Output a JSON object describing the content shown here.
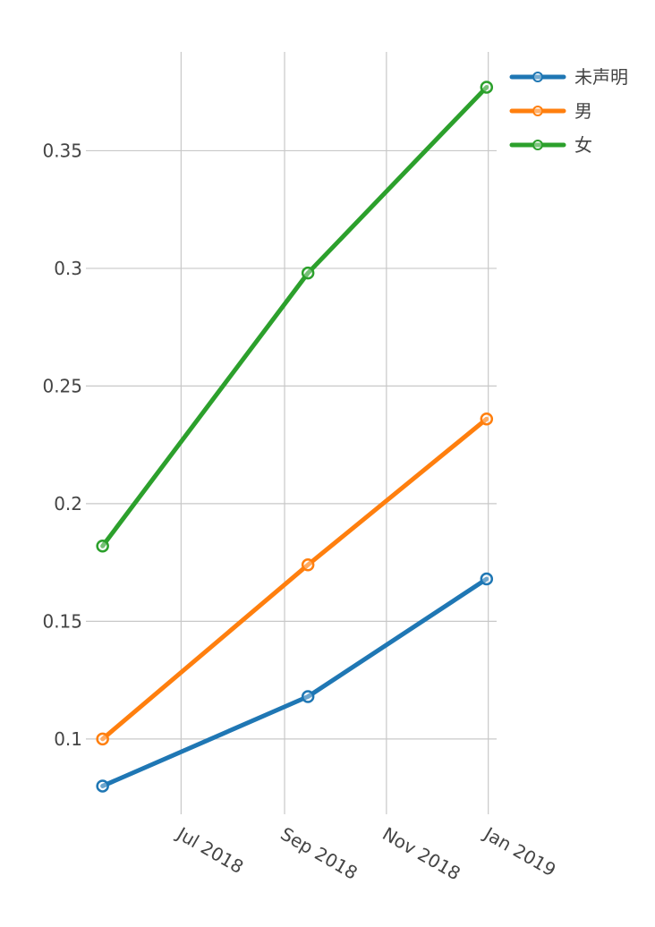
{
  "chart_data": {
    "type": "line",
    "x": [
      "2018-05-15",
      "2018-09-15",
      "2018-12-31"
    ],
    "series": [
      {
        "name": "未声明",
        "values": [
          0.08,
          0.118,
          0.168
        ],
        "color": "#1f77b4"
      },
      {
        "name": "男",
        "values": [
          0.1,
          0.174,
          0.236
        ],
        "color": "#ff7f0e"
      },
      {
        "name": "女",
        "values": [
          0.182,
          0.298,
          0.377
        ],
        "color": "#2ca02c"
      }
    ],
    "xticks": [
      {
        "date": "2018-07-01",
        "label": "Jul 2018"
      },
      {
        "date": "2018-09-01",
        "label": "Sep 2018"
      },
      {
        "date": "2018-11-01",
        "label": "Nov 2018"
      },
      {
        "date": "2019-01-01",
        "label": "Jan 2019"
      }
    ],
    "yticks": [
      {
        "value": 0.1,
        "label": "0.1"
      },
      {
        "value": 0.15,
        "label": "0.15"
      },
      {
        "value": 0.2,
        "label": "0.2"
      },
      {
        "value": 0.25,
        "label": "0.25"
      },
      {
        "value": 0.3,
        "label": "0.3"
      },
      {
        "value": 0.35,
        "label": "0.35"
      }
    ],
    "xlim": [
      "2018-05-05",
      "2019-01-06"
    ],
    "ylim": [
      0.068,
      0.392
    ],
    "grid": true,
    "legend_position": "top-right",
    "title": "",
    "xlabel": "",
    "ylabel": ""
  }
}
